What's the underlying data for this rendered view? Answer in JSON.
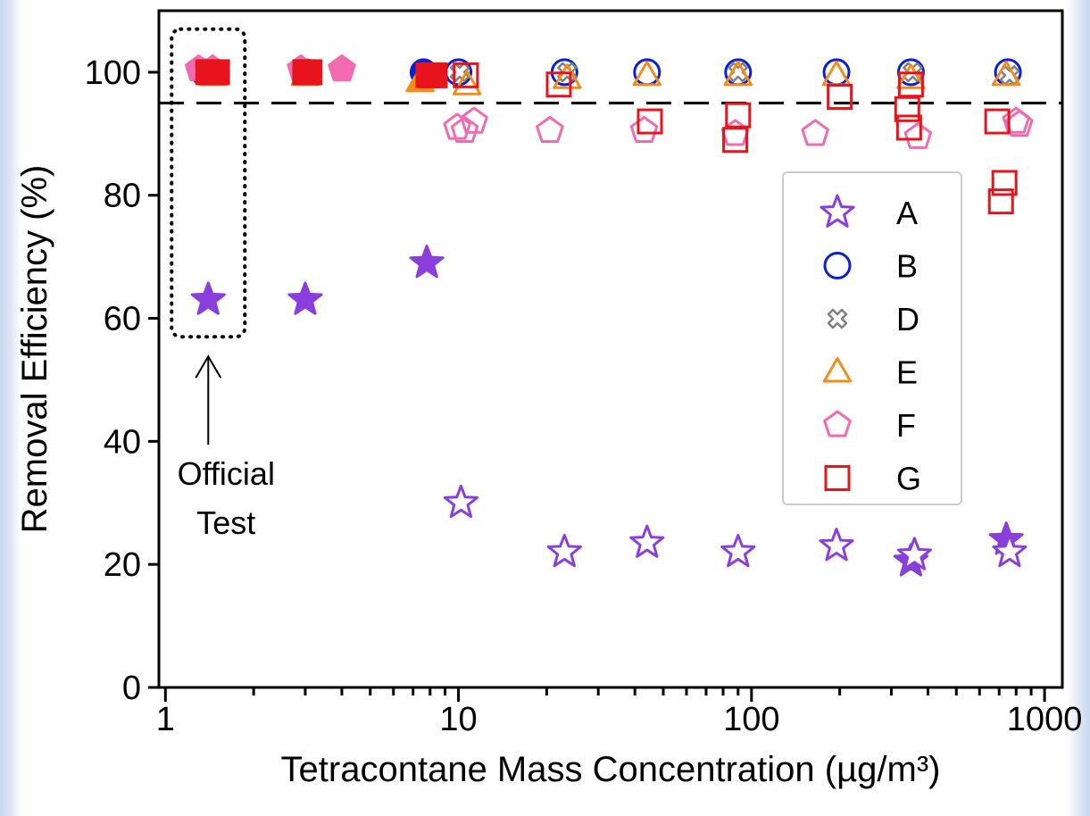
{
  "chart_data": {
    "type": "scatter",
    "xscale": "log",
    "xlim": [
      0.95,
      1150
    ],
    "ylim": [
      0,
      110
    ],
    "x_ticks": [
      {
        "value": 1,
        "label": "1"
      },
      {
        "value": 10,
        "label": "10"
      },
      {
        "value": 100,
        "label": "100"
      },
      {
        "value": 1000,
        "label": "1000"
      }
    ],
    "y_ticks": [
      {
        "value": 0,
        "label": "0"
      },
      {
        "value": 20,
        "label": "20"
      },
      {
        "value": 40,
        "label": "40"
      },
      {
        "value": 60,
        "label": "60"
      },
      {
        "value": 80,
        "label": "80"
      },
      {
        "value": 100,
        "label": "100"
      }
    ],
    "xlabel": "Tetracontane Mass Concentration (µg/m³)",
    "ylabel": "Removal Efficiency (%)",
    "reference_line": {
      "y": 95,
      "style": "dashed",
      "color": "#000000"
    },
    "annotation": {
      "lines": [
        "Official",
        "Test"
      ],
      "x": 1.4,
      "y_range": [
        57,
        107
      ],
      "style": "dotted-box-with-arrow"
    },
    "legend_position": "right",
    "series": [
      {
        "name": "A",
        "marker": "star",
        "color": "#8a3fdd",
        "points": [
          {
            "x": 1.4,
            "y": 63,
            "filled": true
          },
          {
            "x": 3,
            "y": 63,
            "filled": true
          },
          {
            "x": 7.8,
            "y": 69,
            "filled": true
          },
          {
            "x": 10.2,
            "y": 30,
            "filled": false
          },
          {
            "x": 23,
            "y": 22,
            "filled": false
          },
          {
            "x": 44,
            "y": 23.5,
            "filled": false
          },
          {
            "x": 90,
            "y": 22,
            "filled": false
          },
          {
            "x": 195,
            "y": 23,
            "filled": false
          },
          {
            "x": 350,
            "y": 20.5,
            "filled": true
          },
          {
            "x": 360,
            "y": 21.5,
            "filled": false
          },
          {
            "x": 740,
            "y": 24,
            "filled": true
          },
          {
            "x": 760,
            "y": 22,
            "filled": false
          }
        ]
      },
      {
        "name": "B",
        "marker": "circle",
        "color": "#0b1fd6",
        "points": [
          {
            "x": 1.35,
            "y": 100,
            "filled": true
          },
          {
            "x": 3,
            "y": 100,
            "filled": true
          },
          {
            "x": 7.6,
            "y": 100,
            "filled": true
          },
          {
            "x": 10,
            "y": 100,
            "filled": false
          },
          {
            "x": 23,
            "y": 100,
            "filled": false
          },
          {
            "x": 44,
            "y": 100,
            "filled": false
          },
          {
            "x": 90,
            "y": 100,
            "filled": false
          },
          {
            "x": 195,
            "y": 100,
            "filled": false
          },
          {
            "x": 350,
            "y": 100,
            "filled": false
          },
          {
            "x": 750,
            "y": 100,
            "filled": false
          }
        ]
      },
      {
        "name": "D",
        "marker": "x",
        "color": "#808080",
        "points": [
          {
            "x": 1.4,
            "y": 100,
            "filled": true
          },
          {
            "x": 7.9,
            "y": 100,
            "filled": true
          },
          {
            "x": 10.1,
            "y": 100,
            "filled": false
          },
          {
            "x": 23.5,
            "y": 100,
            "filled": false
          },
          {
            "x": 90,
            "y": 100,
            "filled": false
          },
          {
            "x": 355,
            "y": 100,
            "filled": false
          },
          {
            "x": 760,
            "y": 99.5,
            "filled": false
          }
        ]
      },
      {
        "name": "E",
        "marker": "triangle",
        "color": "#f28c1a",
        "points": [
          {
            "x": 1.45,
            "y": 99.5,
            "filled": true
          },
          {
            "x": 3,
            "y": 99.5,
            "filled": true
          },
          {
            "x": 7.4,
            "y": 98.5,
            "filled": true
          },
          {
            "x": 10.7,
            "y": 98,
            "filled": false
          },
          {
            "x": 23.5,
            "y": 99,
            "filled": false
          },
          {
            "x": 44,
            "y": 99.5,
            "filled": false
          },
          {
            "x": 90,
            "y": 99.5,
            "filled": false
          },
          {
            "x": 195,
            "y": 99.5,
            "filled": false
          },
          {
            "x": 350,
            "y": 99,
            "filled": false
          },
          {
            "x": 740,
            "y": 99.5,
            "filled": false
          }
        ]
      },
      {
        "name": "F",
        "marker": "pentagon",
        "color": "#f26bb0",
        "points": [
          {
            "x": 1.3,
            "y": 100.5,
            "filled": true
          },
          {
            "x": 1.45,
            "y": 100.5,
            "filled": true
          },
          {
            "x": 2.9,
            "y": 100.5,
            "filled": true
          },
          {
            "x": 4,
            "y": 100.5,
            "filled": true
          },
          {
            "x": 9.9,
            "y": 91,
            "filled": false
          },
          {
            "x": 10.5,
            "y": 90.5,
            "filled": false
          },
          {
            "x": 11.3,
            "y": 92,
            "filled": false
          },
          {
            "x": 20.5,
            "y": 90.5,
            "filled": false
          },
          {
            "x": 43,
            "y": 90.5,
            "filled": false
          },
          {
            "x": 88,
            "y": 90,
            "filled": false
          },
          {
            "x": 165,
            "y": 90,
            "filled": false
          },
          {
            "x": 370,
            "y": 89.5,
            "filled": false
          },
          {
            "x": 800,
            "y": 92,
            "filled": false
          },
          {
            "x": 820,
            "y": 91.5,
            "filled": false
          }
        ]
      },
      {
        "name": "G",
        "marker": "square",
        "color": "#e8141c",
        "points": [
          {
            "x": 1.4,
            "y": 100,
            "filled": true
          },
          {
            "x": 1.5,
            "y": 100,
            "filled": true
          },
          {
            "x": 3,
            "y": 100,
            "filled": true
          },
          {
            "x": 3.1,
            "y": 100,
            "filled": true
          },
          {
            "x": 7.9,
            "y": 99.5,
            "filled": true
          },
          {
            "x": 8.3,
            "y": 99.5,
            "filled": true
          },
          {
            "x": 10.6,
            "y": 99.5,
            "filled": false
          },
          {
            "x": 22,
            "y": 98,
            "filled": false
          },
          {
            "x": 45,
            "y": 92,
            "filled": false
          },
          {
            "x": 88,
            "y": 89,
            "filled": false
          },
          {
            "x": 90,
            "y": 93,
            "filled": false
          },
          {
            "x": 200,
            "y": 96,
            "filled": false
          },
          {
            "x": 340,
            "y": 94,
            "filled": false
          },
          {
            "x": 345,
            "y": 91,
            "filled": false
          },
          {
            "x": 350,
            "y": 98,
            "filled": false
          },
          {
            "x": 690,
            "y": 92,
            "filled": false
          },
          {
            "x": 730,
            "y": 82,
            "filled": false
          },
          {
            "x": 710,
            "y": 79,
            "filled": false
          }
        ]
      }
    ]
  }
}
